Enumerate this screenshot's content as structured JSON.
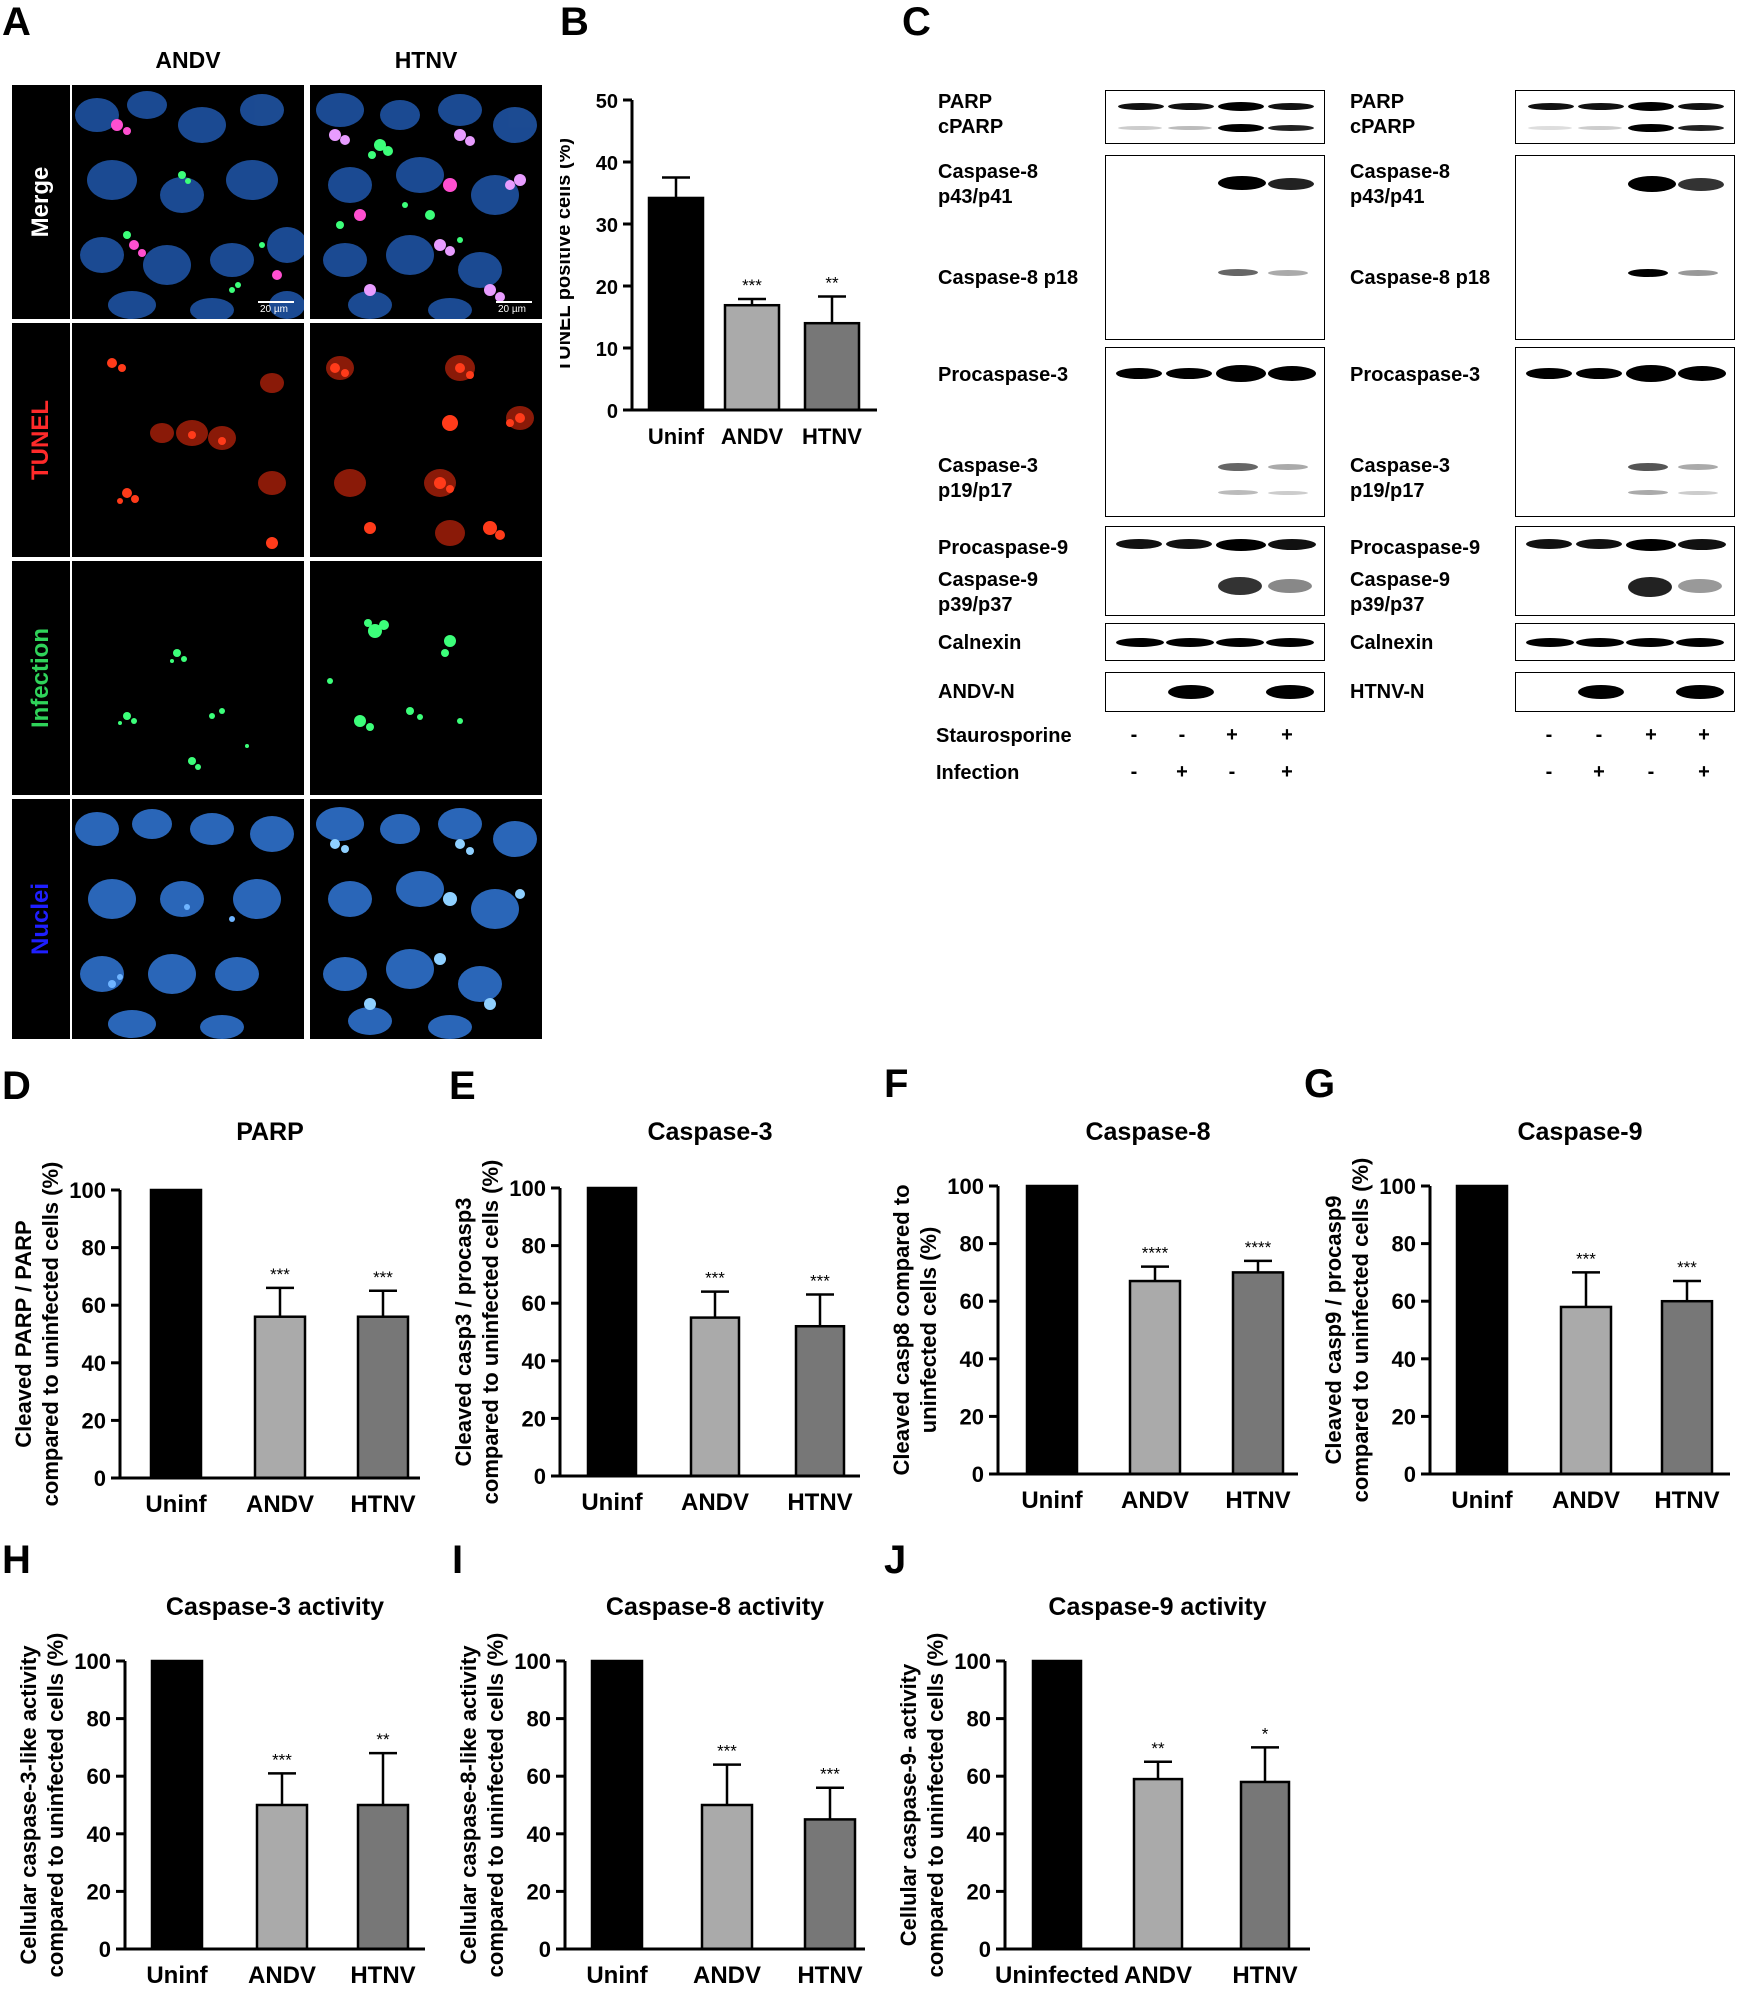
{
  "panels": {
    "A": {
      "letter": "A",
      "columns": [
        "ANDV",
        "HTNV"
      ],
      "rows": [
        {
          "label": "Merge",
          "color": "#ffffff"
        },
        {
          "label": "TUNEL",
          "color": "#ff2a2a"
        },
        {
          "label": "Infection",
          "color": "#2fd35a"
        },
        {
          "label": "Nuclei",
          "color": "#1f1fff"
        }
      ],
      "scale_label": "20 µm"
    },
    "B": {
      "letter": "B"
    },
    "C": {
      "letter": "C",
      "left_labels": [
        "PARP\ncPARP",
        "Caspase-8\np43/p41",
        "Caspase-8 p18",
        "Procaspase-3",
        "Caspase-3\np19/p17",
        "Procaspase-9",
        "Caspase-9\np39/p37",
        "Calnexin",
        "ANDV-N"
      ],
      "right_labels": [
        "PARP\ncPARP",
        "Caspase-8\np43/p41",
        "Caspase-8 p18",
        "Procaspase-3",
        "Caspase-3\np19/p17",
        "Procaspase-9",
        "Caspase-9\np39/p37",
        "Calnexin",
        "HTNV-N"
      ],
      "treatment_rows": [
        {
          "label": "Staurosporine",
          "signs": [
            "-",
            "-",
            "+",
            "+"
          ]
        },
        {
          "label": "Infection",
          "signs": [
            "-",
            "+",
            "-",
            "+"
          ]
        }
      ]
    },
    "D": {
      "letter": "D"
    },
    "E": {
      "letter": "E"
    },
    "F": {
      "letter": "F"
    },
    "G": {
      "letter": "G"
    },
    "H": {
      "letter": "H"
    },
    "I": {
      "letter": "I"
    },
    "J": {
      "letter": "J"
    }
  },
  "colors": {
    "uninf": "#000000",
    "andv": "#aaaaaa",
    "htnv": "#777777"
  },
  "chart_data": [
    {
      "id": "B",
      "type": "bar",
      "title": "",
      "ylabel": "TUNEL positive cells (%)",
      "categories": [
        "Uninf",
        "ANDV",
        "HTNV"
      ],
      "values": [
        34.2,
        16.9,
        14.0
      ],
      "errors": [
        3.3,
        1.0,
        4.3
      ],
      "significance": [
        "",
        "***",
        "**"
      ],
      "ylim": [
        0,
        50
      ],
      "yticks": [
        0,
        10,
        20,
        30,
        40,
        50
      ]
    },
    {
      "id": "D",
      "type": "bar",
      "title": "PARP",
      "ylabel": [
        "Cleaved PARP / PARP",
        "compared to uninfected cells (%)"
      ],
      "categories": [
        "Uninf",
        "ANDV",
        "HTNV"
      ],
      "values": [
        100,
        56,
        56
      ],
      "errors": [
        0,
        10,
        9
      ],
      "significance": [
        "",
        "***",
        "***"
      ],
      "ylim": [
        0,
        100
      ],
      "yticks": [
        0,
        20,
        40,
        60,
        80,
        100
      ]
    },
    {
      "id": "E",
      "type": "bar",
      "title": "Caspase-3",
      "ylabel": [
        "Cleaved casp3 / procasp3",
        "compared to uninfected cells (%)"
      ],
      "categories": [
        "Uninf",
        "ANDV",
        "HTNV"
      ],
      "values": [
        100,
        55,
        52
      ],
      "errors": [
        0,
        9,
        11
      ],
      "significance": [
        "",
        "***",
        "***"
      ],
      "ylim": [
        0,
        100
      ],
      "yticks": [
        0,
        20,
        40,
        60,
        80,
        100
      ]
    },
    {
      "id": "F",
      "type": "bar",
      "title": "Caspase-8",
      "ylabel": [
        "Cleaved casp8 compared to",
        "uninfected cells (%)"
      ],
      "categories": [
        "Uninf",
        "ANDV",
        "HTNV"
      ],
      "values": [
        100,
        67,
        70
      ],
      "errors": [
        0,
        5,
        4
      ],
      "significance": [
        "",
        "****",
        "****"
      ],
      "ylim": [
        0,
        100
      ],
      "yticks": [
        0,
        20,
        40,
        60,
        80,
        100
      ]
    },
    {
      "id": "G",
      "type": "bar",
      "title": "Caspase-9",
      "ylabel": [
        "Cleaved casp9 / procasp9",
        "compared to uninfected cells (%)"
      ],
      "categories": [
        "Uninf",
        "ANDV",
        "HTNV"
      ],
      "values": [
        100,
        58,
        60
      ],
      "errors": [
        0,
        12,
        7
      ],
      "significance": [
        "",
        "***",
        "***"
      ],
      "ylim": [
        0,
        100
      ],
      "yticks": [
        0,
        20,
        40,
        60,
        80,
        100
      ]
    },
    {
      "id": "H",
      "type": "bar",
      "title": "Caspase-3 activity",
      "ylabel": [
        "Cellular caspase-3-like activity",
        "compared to uninfected cells (%)"
      ],
      "categories": [
        "Uninf",
        "ANDV",
        "HTNV"
      ],
      "values": [
        100,
        50,
        50
      ],
      "errors": [
        0,
        11,
        18
      ],
      "significance": [
        "",
        "***",
        "**"
      ],
      "ylim": [
        0,
        100
      ],
      "yticks": [
        0,
        20,
        40,
        60,
        80,
        100
      ]
    },
    {
      "id": "I",
      "type": "bar",
      "title": "Caspase-8 activity",
      "ylabel": [
        "Cellular caspase-8-like activity",
        "compared to uninfected cells (%)"
      ],
      "categories": [
        "Uninf",
        "ANDV",
        "HTNV"
      ],
      "values": [
        100,
        50,
        45
      ],
      "errors": [
        0,
        14,
        11
      ],
      "significance": [
        "",
        "***",
        "***"
      ],
      "ylim": [
        0,
        100
      ],
      "yticks": [
        0,
        20,
        40,
        60,
        80,
        100
      ]
    },
    {
      "id": "J",
      "type": "bar",
      "title": "Caspase-9 activity",
      "ylabel": [
        "Cellular caspase-9- activity",
        "compared to uninfected cells (%)"
      ],
      "categories": [
        "Uninfected",
        "ANDV",
        "HTNV"
      ],
      "values": [
        100,
        59,
        58
      ],
      "errors": [
        0,
        6,
        12
      ],
      "significance": [
        "",
        "**",
        "*"
      ],
      "ylim": [
        0,
        100
      ],
      "yticks": [
        0,
        20,
        40,
        60,
        80,
        100
      ]
    }
  ]
}
